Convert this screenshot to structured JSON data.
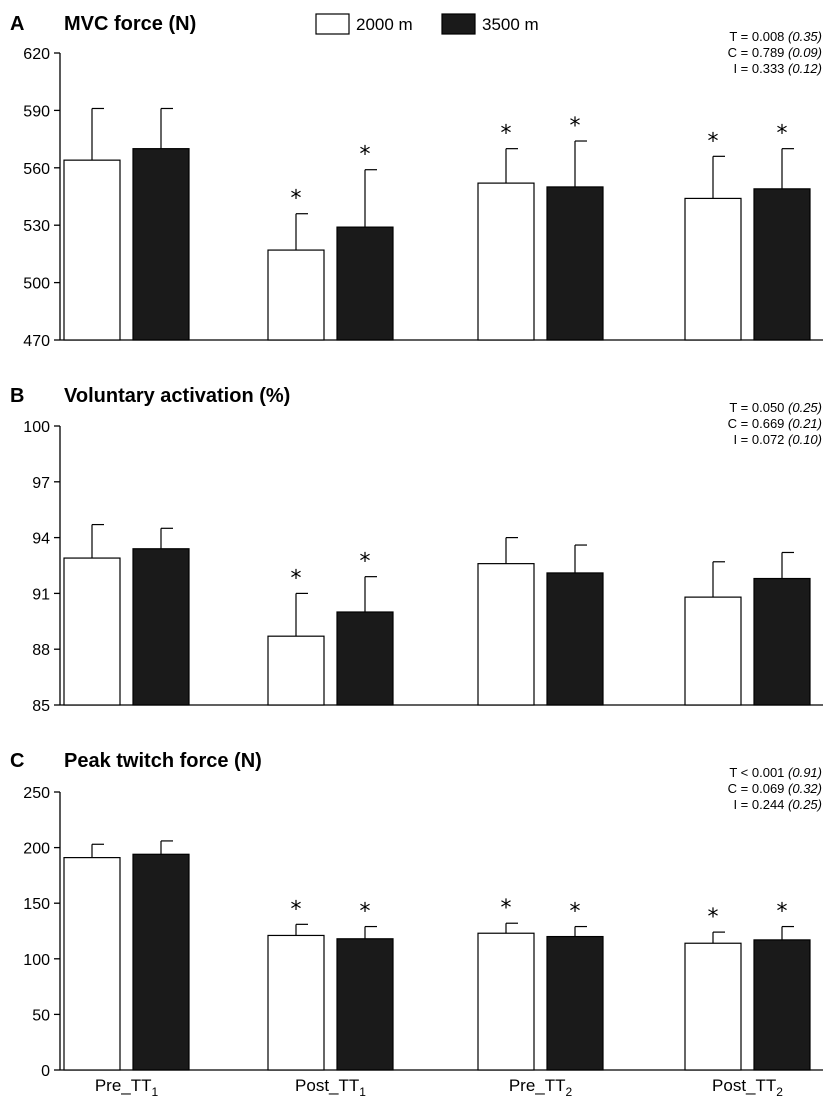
{
  "legend": [
    {
      "label": "2000 m",
      "fill": "#ffffff"
    },
    {
      "label": "3500 m",
      "fill": "#1a1a1a"
    }
  ],
  "categories": [
    {
      "base": "Pre_TT",
      "sub": "1"
    },
    {
      "base": "Post_TT",
      "sub": "1"
    },
    {
      "base": "Pre_TT",
      "sub": "2"
    },
    {
      "base": "Post_TT",
      "sub": "2"
    }
  ],
  "chart_data": [
    {
      "type": "bar",
      "letter": "A",
      "title": "MVC force (N)",
      "ylim": [
        470,
        620
      ],
      "yticks": [
        470,
        500,
        530,
        560,
        590,
        620
      ],
      "series": [
        {
          "name": "2000 m",
          "values": [
            564,
            517,
            552,
            544
          ],
          "errors": [
            27,
            19,
            18,
            22
          ],
          "significant": [
            false,
            true,
            true,
            true
          ]
        },
        {
          "name": "3500 m",
          "values": [
            570,
            529,
            550,
            549
          ],
          "errors": [
            21,
            30,
            24,
            21
          ],
          "significant": [
            false,
            true,
            true,
            true
          ]
        }
      ],
      "stats": [
        {
          "label": "T = 0.008",
          "effect": "(0.35)"
        },
        {
          "label": "C = 0.789",
          "effect": "(0.09)"
        },
        {
          "label": "I = 0.333",
          "effect": "(0.12)"
        }
      ]
    },
    {
      "type": "bar",
      "letter": "B",
      "title": "Voluntary activation (%)",
      "ylim": [
        85,
        100
      ],
      "yticks": [
        85,
        88,
        91,
        94,
        97,
        100
      ],
      "series": [
        {
          "name": "2000 m",
          "values": [
            92.9,
            88.7,
            92.6,
            90.8
          ],
          "errors": [
            1.8,
            2.3,
            1.4,
            1.9
          ],
          "significant": [
            false,
            true,
            false,
            false
          ]
        },
        {
          "name": "3500 m",
          "values": [
            93.4,
            90.0,
            92.1,
            91.8
          ],
          "errors": [
            1.1,
            1.9,
            1.5,
            1.4
          ],
          "significant": [
            false,
            true,
            false,
            false
          ]
        }
      ],
      "stats": [
        {
          "label": "T = 0.050",
          "effect": "(0.25)"
        },
        {
          "label": "C = 0.669",
          "effect": "(0.21)"
        },
        {
          "label": "I = 0.072",
          "effect": "(0.10)"
        }
      ]
    },
    {
      "type": "bar",
      "letter": "C",
      "title": "Peak twitch force (N)",
      "ylim": [
        0,
        250
      ],
      "yticks": [
        0,
        50,
        100,
        150,
        200,
        250
      ],
      "series": [
        {
          "name": "2000 m",
          "values": [
            191,
            121,
            123,
            114
          ],
          "errors": [
            12,
            10,
            9,
            10
          ],
          "significant": [
            false,
            true,
            true,
            true
          ]
        },
        {
          "name": "3500 m",
          "values": [
            194,
            118,
            120,
            117
          ],
          "errors": [
            12,
            11,
            9,
            12
          ],
          "significant": [
            false,
            true,
            true,
            true
          ]
        }
      ],
      "stats": [
        {
          "label": "T < 0.001",
          "effect": "(0.91)"
        },
        {
          "label": "C = 0.069",
          "effect": "(0.32)"
        },
        {
          "label": "I = 0.244",
          "effect": "(0.25)"
        }
      ]
    }
  ]
}
